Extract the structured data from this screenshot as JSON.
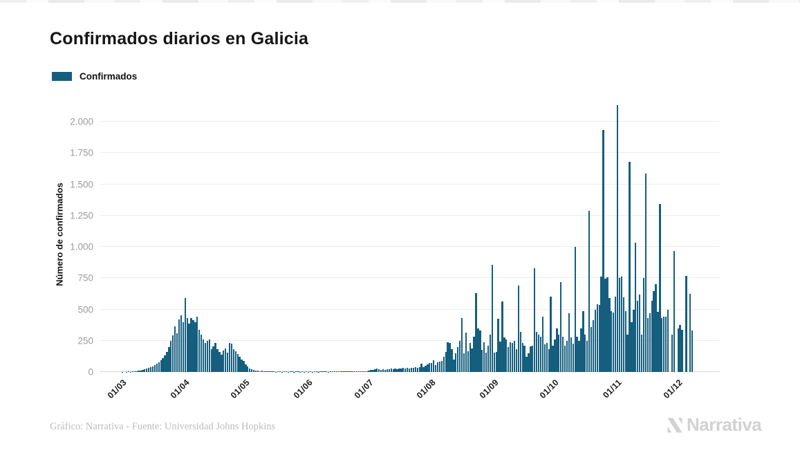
{
  "header": {
    "title": "Confirmados diarios en Galicia"
  },
  "legend": {
    "items": [
      {
        "label": "Confirmados",
        "color": "#155e7e"
      }
    ]
  },
  "footer": {
    "credit": "Gráfico: Narrativa - Fuente: Universidad Johns Hopkins",
    "brand": "Narrativa"
  },
  "colors": {
    "bar": "#155e7e",
    "grid": "#ededed",
    "axis_line": "#d7d7d7",
    "ytick_text": "#9b9b9b",
    "xtick_text": "#1c1c1c",
    "title_text": "#151515",
    "credit_text": "#bdbdbd",
    "logo": "#d2d2d2",
    "background": "#ffffff"
  },
  "chart_data": {
    "type": "bar",
    "title": "Confirmados diarios en Galicia",
    "xlabel": "",
    "ylabel": "Número de confirmados",
    "legend_position": "top-left",
    "grid": "horizontal",
    "ylim": [
      0,
      2200
    ],
    "yticks": {
      "values": [
        0,
        250,
        500,
        750,
        1000,
        1250,
        1500,
        1750,
        2000
      ],
      "labels": [
        "0",
        "250",
        "500",
        "750",
        "1.000",
        "1.250",
        "1.500",
        "1.750",
        "2.000"
      ]
    },
    "xticks": {
      "labels": [
        "01/03",
        "01/04",
        "01/05",
        "01/06",
        "01/07",
        "01/08",
        "01/09",
        "01/10",
        "01/11",
        "01/12"
      ],
      "day_index": [
        0,
        31,
        61,
        92,
        122,
        153,
        184,
        214,
        245,
        275
      ]
    },
    "series": [
      {
        "name": "Confirmados",
        "color": "#155e7e",
        "start_date": "01/03",
        "values": [
          1,
          0,
          2,
          3,
          2,
          4,
          6,
          8,
          10,
          13,
          17,
          21,
          26,
          32,
          38,
          46,
          54,
          64,
          78,
          92,
          110,
          135,
          160,
          200,
          250,
          295,
          365,
          310,
          420,
          455,
          400,
          590,
          430,
          385,
          430,
          415,
          400,
          445,
          340,
          300,
          262,
          230,
          248,
          262,
          180,
          205,
          230,
          180,
          160,
          140,
          170,
          190,
          155,
          230,
          225,
          180,
          165,
          145,
          120,
          100,
          90,
          60,
          45,
          30,
          20,
          15,
          10,
          12,
          8,
          10,
          6,
          5,
          8,
          4,
          3,
          5,
          2,
          3,
          4,
          2,
          5,
          3,
          2,
          4,
          3,
          2,
          4,
          3,
          2,
          3,
          2,
          3,
          2,
          3,
          2,
          4,
          3,
          2,
          3,
          5,
          3,
          4,
          2,
          3,
          4,
          3,
          5,
          4,
          3,
          5,
          4,
          6,
          5,
          4,
          6,
          5,
          7,
          6,
          5,
          7,
          6,
          8,
          10,
          14,
          18,
          22,
          25,
          20,
          16,
          22,
          18,
          24,
          20,
          26,
          22,
          28,
          24,
          30,
          26,
          32,
          28,
          34,
          30,
          36,
          32,
          38,
          34,
          40,
          65,
          37,
          50,
          60,
          72,
          70,
          92,
          55,
          75,
          83,
          88,
          120,
          160,
          240,
          233,
          185,
          102,
          148,
          200,
          250,
          434,
          148,
          314,
          166,
          230,
          190,
          280,
          628,
          350,
          330,
          175,
          240,
          155,
          210,
          300,
          859,
          155,
          160,
          425,
          245,
          563,
          277,
          260,
          200,
          240,
          230,
          250,
          180,
          693,
          320,
          230,
          210,
          120,
          150,
          207,
          210,
          831,
          323,
          300,
          280,
          443,
          220,
          230,
          180,
          600,
          210,
          260,
          350,
          300,
          720,
          280,
          210,
          250,
          469,
          275,
          229,
          1001,
          280,
          251,
          349,
          487,
          300,
          250,
          1290,
          358,
          414,
          497,
          543,
          534,
          765,
          1932,
          746,
          755,
          589,
          487,
          478,
          600,
          2131,
          750,
          765,
          598,
          488,
          300,
          1679,
          400,
          500,
          1032,
          571,
          617,
          300,
          750,
          1586,
          430,
          470,
          570,
          645,
          700,
          480,
          1341,
          430,
          440,
          445,
          497,
          0,
          300,
          968,
          0,
          349,
          377,
          340,
          0,
          768,
          0,
          626,
          331
        ]
      }
    ]
  }
}
